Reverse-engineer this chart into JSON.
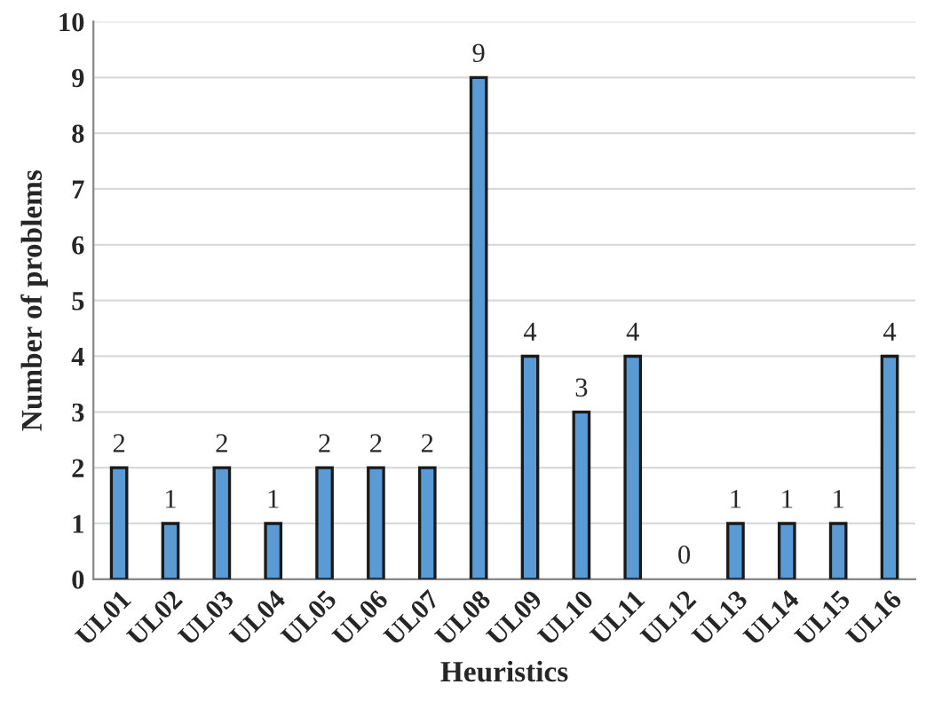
{
  "chart_data": {
    "type": "bar",
    "xlabel": "Heuristics",
    "ylabel": "Number of problems",
    "categories": [
      "UL01",
      "UL02",
      "UL03",
      "UL04",
      "UL05",
      "UL06",
      "UL07",
      "UL08",
      "UL09",
      "UL10",
      "UL11",
      "UL12",
      "UL13",
      "UL14",
      "UL15",
      "UL16"
    ],
    "values": [
      2,
      1,
      2,
      1,
      2,
      2,
      2,
      9,
      4,
      3,
      4,
      0,
      1,
      1,
      1,
      4
    ],
    "color": "#5b9bd5",
    "ylim": [
      0,
      10
    ],
    "yticks": [
      0,
      1,
      2,
      3,
      4,
      5,
      6,
      7,
      8,
      9,
      10
    ],
    "grid": "y",
    "data_labels": true
  }
}
